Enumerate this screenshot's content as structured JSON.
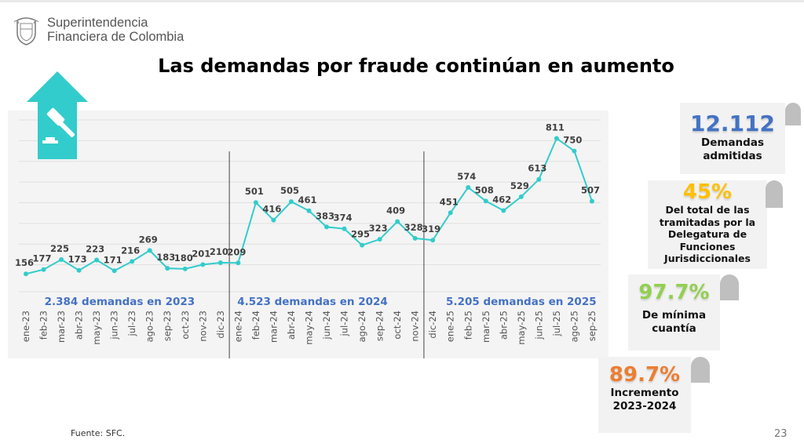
{
  "header": {
    "org_line1": "Superintendencia",
    "org_line2": "Financiera de Colombia",
    "title": "Las demandas por fraude continúan en aumento"
  },
  "chart_data": {
    "type": "line",
    "categories": [
      "ene-23",
      "feb-23",
      "mar-23",
      "abr-23",
      "may-23",
      "jun-23",
      "jul-23",
      "ago-23",
      "sep-23",
      "oct-23",
      "nov-23",
      "dic-23",
      "ene-24",
      "feb-24",
      "mar-24",
      "abr-24",
      "may-24",
      "jun-24",
      "jul-24",
      "ago-24",
      "sep-24",
      "oct-24",
      "nov-24",
      "dic-24",
      "ene-25",
      "feb-25",
      "mar-25",
      "abr-25",
      "may-25",
      "jun-25",
      "jul-25",
      "ago-25",
      "sep-25"
    ],
    "values": [
      156,
      177,
      225,
      173,
      223,
      171,
      216,
      269,
      183,
      180,
      201,
      210,
      209,
      501,
      416,
      505,
      461,
      383,
      374,
      295,
      323,
      409,
      328,
      319,
      451,
      574,
      508,
      462,
      529,
      613,
      811,
      750,
      507
    ],
    "ylim": [
      100,
      900
    ],
    "grid": true,
    "line_color": "#33cccc",
    "period_labels": [
      "2.384 demandas en 2023",
      "4.523 demandas en 2024",
      "5.205 demandas en 2025"
    ],
    "period_label_color": "#4472c4"
  },
  "cards": [
    {
      "value": "12.112",
      "desc": "Demandas admitidas",
      "color": "#4472c4"
    },
    {
      "value": "45%",
      "desc": "Del total de las tramitadas por la Delegatura de Funciones Jurisdiccionales",
      "color": "#ffc000"
    },
    {
      "value": "97.7%",
      "desc": "De mínima cuantía",
      "color": "#92d050"
    },
    {
      "value": "89.7%",
      "desc": "Incremento 2023-2024",
      "color": "#ed7d31"
    }
  ],
  "footer": {
    "source": "Fuente:  SFC.",
    "page": "23"
  },
  "icons": {
    "logo": "colombia-coat-of-arms",
    "badge": "gavel-up-arrow"
  }
}
